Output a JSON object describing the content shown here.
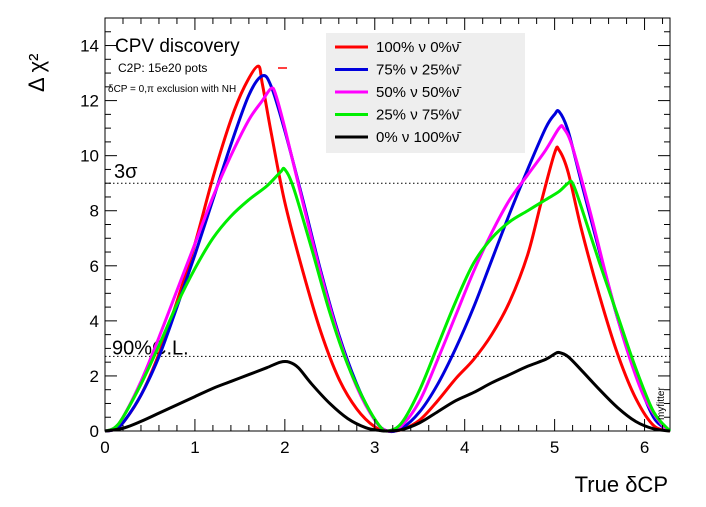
{
  "chart_data": {
    "type": "line",
    "title": "CPV discovery",
    "subtitle": "C2P: 15e20 pots",
    "note": "δCP = 0,π exclusion with NH",
    "xlabel": "True δCP",
    "ylabel": "Δ χ²",
    "xlim": [
      0,
      6.283
    ],
    "ylim": [
      0,
      15
    ],
    "x_ticks": [
      "0",
      "1",
      "2",
      "3",
      "4",
      "5",
      "6"
    ],
    "y_ticks": [
      "0",
      "2",
      "4",
      "6",
      "8",
      "10",
      "12",
      "14"
    ],
    "watermark": "myfitter",
    "reference_lines": [
      {
        "label": "3σ",
        "value": 9
      },
      {
        "label": "90%C.L.",
        "value": 2.71
      }
    ],
    "series": [
      {
        "name": "100% ν 0%ν̄",
        "color": "#ff0000",
        "x": [
          0,
          0.1,
          0.2,
          0.4,
          0.6,
          0.8,
          1.0,
          1.2,
          1.4,
          1.55,
          1.7,
          1.75,
          1.85,
          2.0,
          2.2,
          2.4,
          2.6,
          2.8,
          3.0,
          3.14,
          3.3,
          3.5,
          3.7,
          3.9,
          4.1,
          4.3,
          4.5,
          4.7,
          4.85,
          5.0,
          5.05,
          5.15,
          5.3,
          5.5,
          5.7,
          5.9,
          6.1,
          6.283
        ],
        "values": [
          0,
          0.05,
          0.3,
          1.3,
          2.8,
          4.7,
          6.8,
          9.2,
          11.3,
          12.5,
          13.25,
          12.6,
          10.8,
          8.3,
          5.8,
          3.6,
          1.9,
          0.8,
          0.15,
          0,
          0.05,
          0.4,
          1.1,
          1.9,
          2.6,
          3.5,
          4.7,
          6.4,
          8.3,
          10.1,
          10.2,
          9.4,
          7.3,
          4.9,
          2.8,
          1.2,
          0.2,
          0
        ]
      },
      {
        "name": "75% ν 25%ν̄",
        "color": "#0000dd",
        "x": [
          0,
          0.1,
          0.2,
          0.4,
          0.6,
          0.8,
          1.0,
          1.2,
          1.4,
          1.6,
          1.75,
          1.85,
          2.0,
          2.2,
          2.4,
          2.6,
          2.8,
          3.0,
          3.14,
          3.3,
          3.5,
          3.7,
          3.9,
          4.1,
          4.3,
          4.5,
          4.7,
          4.9,
          5.0,
          5.05,
          5.15,
          5.3,
          5.5,
          5.7,
          5.9,
          6.1,
          6.283
        ],
        "values": [
          0,
          0.05,
          0.3,
          1.3,
          2.7,
          4.5,
          6.4,
          8.4,
          10.4,
          12.2,
          12.9,
          12.5,
          10.9,
          8.4,
          5.8,
          3.5,
          1.7,
          0.4,
          0,
          0.1,
          0.7,
          1.7,
          3.0,
          4.5,
          6.2,
          7.9,
          9.5,
          11.0,
          11.5,
          11.6,
          10.9,
          9.0,
          6.5,
          4.1,
          2.1,
          0.5,
          0
        ]
      },
      {
        "name": "50% ν 50%ν̄",
        "color": "#ff00ff",
        "x": [
          0,
          0.1,
          0.2,
          0.4,
          0.6,
          0.8,
          1.0,
          1.2,
          1.4,
          1.6,
          1.75,
          1.85,
          1.9,
          2.0,
          2.2,
          2.4,
          2.6,
          2.8,
          3.0,
          3.14,
          3.3,
          3.5,
          3.7,
          3.9,
          4.1,
          4.3,
          4.5,
          4.7,
          4.9,
          5.05,
          5.1,
          5.2,
          5.4,
          5.6,
          5.8,
          6.0,
          6.2,
          6.283
        ],
        "values": [
          0,
          0.1,
          0.5,
          1.8,
          3.4,
          5.1,
          6.8,
          8.5,
          10.0,
          11.3,
          12.0,
          12.45,
          12.2,
          11.0,
          8.3,
          5.7,
          3.4,
          1.6,
          0.4,
          0,
          0.2,
          1.1,
          2.6,
          4.2,
          5.8,
          7.2,
          8.4,
          9.3,
          10.2,
          11.0,
          11.0,
          10.3,
          7.9,
          5.3,
          3.0,
          1.2,
          0.2,
          0
        ]
      },
      {
        "name": "25% ν 75%ν̄",
        "color": "#00ee00",
        "x": [
          0,
          0.1,
          0.2,
          0.4,
          0.6,
          0.8,
          1.0,
          1.2,
          1.4,
          1.6,
          1.8,
          1.95,
          2.0,
          2.1,
          2.3,
          2.5,
          2.7,
          2.9,
          3.05,
          3.14,
          3.3,
          3.5,
          3.7,
          3.9,
          4.1,
          4.3,
          4.5,
          4.7,
          4.9,
          5.05,
          5.15,
          5.2,
          5.3,
          5.5,
          5.7,
          5.9,
          6.1,
          6.283
        ],
        "values": [
          0,
          0.1,
          0.5,
          1.7,
          3.1,
          4.6,
          5.9,
          7.0,
          7.8,
          8.4,
          8.9,
          9.4,
          9.5,
          8.8,
          6.6,
          4.3,
          2.4,
          1.0,
          0.2,
          0,
          0.3,
          1.5,
          3.1,
          4.7,
          6.1,
          7.0,
          7.6,
          8.0,
          8.4,
          8.7,
          9.0,
          9.0,
          8.1,
          6.1,
          4.2,
          2.3,
          0.7,
          0
        ]
      },
      {
        "name": "0% ν 100%ν̄",
        "color": "#000000",
        "x": [
          0,
          0.2,
          0.4,
          0.6,
          0.8,
          1.0,
          1.2,
          1.4,
          1.6,
          1.8,
          1.95,
          2.05,
          2.15,
          2.3,
          2.5,
          2.7,
          2.9,
          3.05,
          3.14,
          3.3,
          3.5,
          3.7,
          3.9,
          4.1,
          4.3,
          4.5,
          4.7,
          4.9,
          5.0,
          5.05,
          5.15,
          5.3,
          5.5,
          5.7,
          5.9,
          6.1,
          6.283
        ],
        "values": [
          0,
          0.1,
          0.35,
          0.65,
          0.95,
          1.25,
          1.55,
          1.8,
          2.05,
          2.3,
          2.5,
          2.5,
          2.3,
          1.7,
          1.0,
          0.45,
          0.12,
          0.02,
          0,
          0.05,
          0.3,
          0.7,
          1.1,
          1.4,
          1.75,
          2.05,
          2.35,
          2.6,
          2.8,
          2.85,
          2.7,
          2.2,
          1.5,
          0.85,
          0.35,
          0.08,
          0
        ]
      }
    ],
    "legend_position": "top-center"
  }
}
